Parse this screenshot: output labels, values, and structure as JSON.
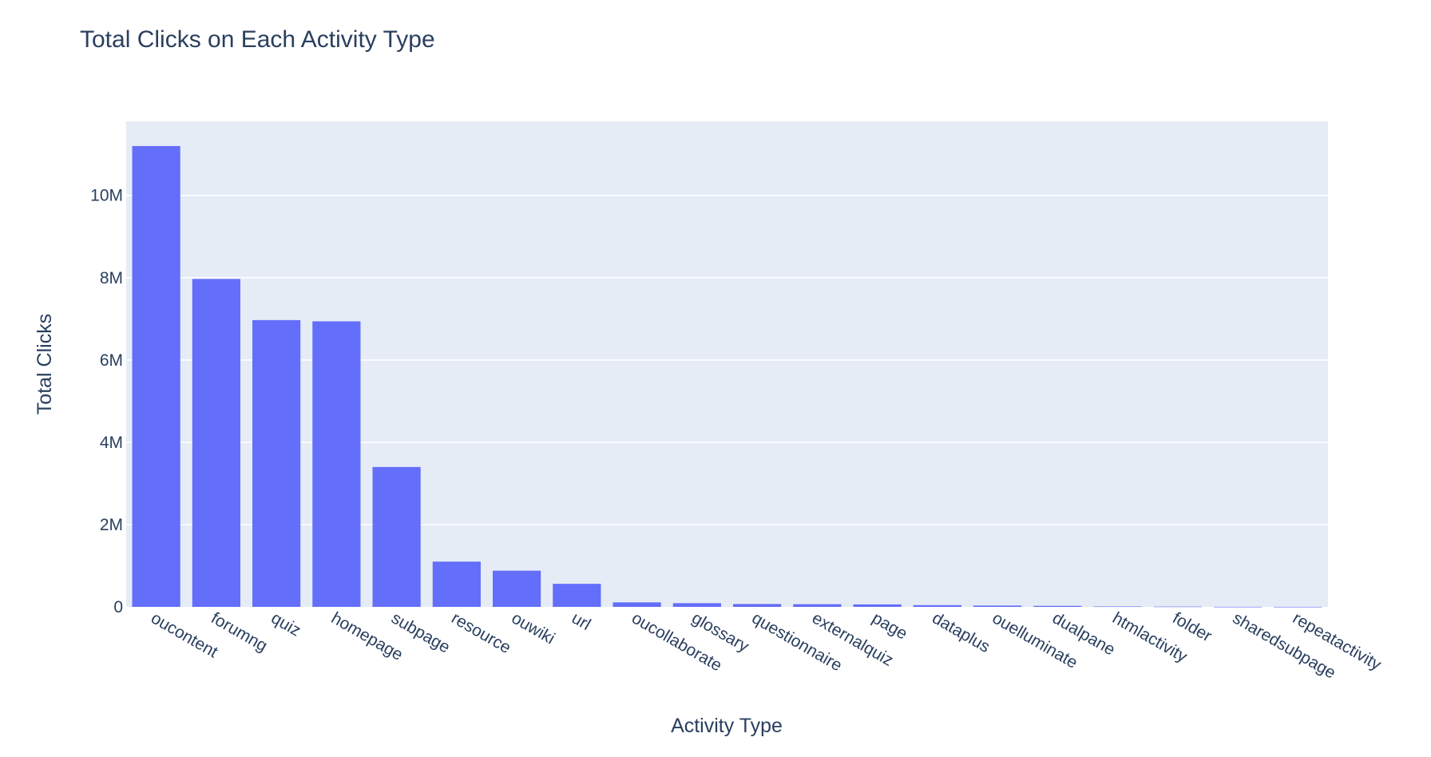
{
  "chart_data": {
    "type": "bar",
    "title": "Total Clicks on Each Activity Type",
    "xlabel": "Activity Type",
    "ylabel": "Total Clicks",
    "ylim": [
      0,
      11800000
    ],
    "grid": true,
    "legend": "none",
    "bar_color": "#636efa",
    "plot_bg": "#e5ecf6",
    "y_ticks": [
      {
        "value": 0,
        "label": "0"
      },
      {
        "value": 2000000,
        "label": "2M"
      },
      {
        "value": 4000000,
        "label": "4M"
      },
      {
        "value": 6000000,
        "label": "6M"
      },
      {
        "value": 8000000,
        "label": "8M"
      },
      {
        "value": 10000000,
        "label": "10M"
      }
    ],
    "categories": [
      "oucontent",
      "forumng",
      "quiz",
      "homepage",
      "subpage",
      "resource",
      "ouwiki",
      "url",
      "oucollaborate",
      "glossary",
      "questionnaire",
      "externalquiz",
      "page",
      "dataplus",
      "ouelluminate",
      "dualpane",
      "htmlactivity",
      "folder",
      "sharedsubpage",
      "repeatactivity"
    ],
    "values": [
      11200000,
      7970000,
      6970000,
      6940000,
      3400000,
      1100000,
      880000,
      560000,
      110000,
      90000,
      70000,
      65000,
      60000,
      42000,
      32000,
      25000,
      10000,
      7000,
      2000,
      1000
    ]
  }
}
